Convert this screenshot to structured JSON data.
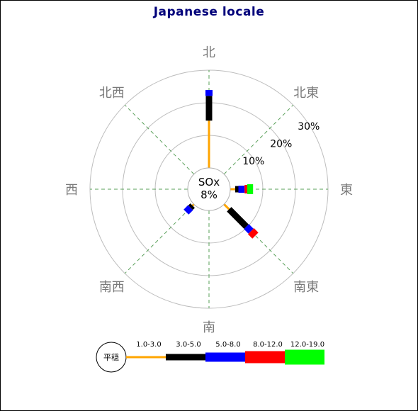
{
  "title": "Japanese locale",
  "chart_data": {
    "type": "windrose",
    "title": "Japanese locale",
    "center_label": "SOx",
    "center_value": "8%",
    "directions": [
      "北",
      "北東",
      "東",
      "南東",
      "南",
      "南西",
      "西",
      "北西"
    ],
    "ring_labels": [
      "10%",
      "20%",
      "30%"
    ],
    "ring_values": [
      10,
      20,
      30
    ],
    "bins": [
      "1.0-3.0",
      "3.0-5.0",
      "5.0-8.0",
      "8.0-12.0",
      "12.0-19.0"
    ],
    "calm_label": "平穏",
    "colors": [
      "#ffa500",
      "#000000",
      "#0000ff",
      "#ff0000",
      "#00ff00"
    ],
    "series": [
      {
        "direction": "北",
        "values": [
          14.5,
          7.6,
          1.8,
          0,
          0
        ]
      },
      {
        "direction": "東",
        "values": [
          1.5,
          1.0,
          1.9,
          0.8,
          1.8
        ]
      },
      {
        "direction": "南東",
        "values": [
          2.2,
          7.5,
          2.0,
          1.9,
          0
        ]
      },
      {
        "direction": "南西",
        "values": [
          0.6,
          0.9,
          1.9,
          0,
          0
        ]
      }
    ]
  }
}
